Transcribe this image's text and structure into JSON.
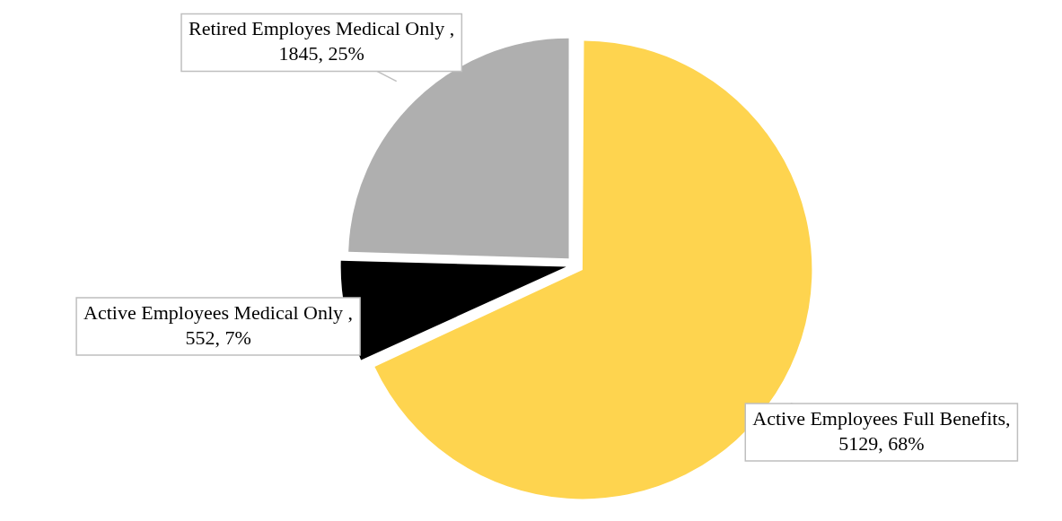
{
  "chart_data": {
    "type": "pie",
    "categories": [
      "Active Employees Full Benefits, 5129, 68%",
      "Active Employees Medical Only , 552, 7%",
      "Retired Employes Medical Only , 1845, 25%"
    ],
    "values": [
      5129,
      552,
      1845
    ],
    "colors": [
      "#fed44f",
      "#000000",
      "#afafaf"
    ],
    "legend": false
  }
}
